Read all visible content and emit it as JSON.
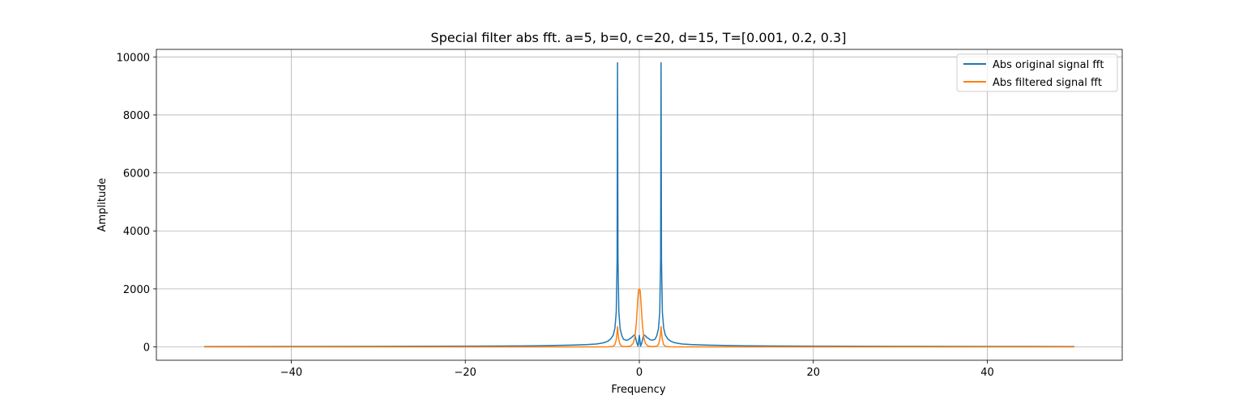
{
  "chart_data": {
    "type": "line",
    "title": "Special filter abs fft. a=5, b=0, c=20, d=15, T=[0.001, 0.2, 0.3]",
    "xlabel": "Frequency",
    "ylabel": "Amplitude",
    "xlim": [
      -55.5,
      55.5
    ],
    "ylim": [
      -460,
      10260
    ],
    "xticks": [
      -40,
      -20,
      0,
      20,
      40
    ],
    "xtick_labels": [
      "−40",
      "−20",
      "0",
      "20",
      "40"
    ],
    "yticks": [
      0,
      2000,
      4000,
      6000,
      8000,
      10000
    ],
    "ytick_labels": [
      "0",
      "2000",
      "4000",
      "6000",
      "8000",
      "10000"
    ],
    "grid": true,
    "legend_position": "top-right",
    "series": [
      {
        "name": "Abs original signal fft",
        "color": "#1f77b4",
        "points": [
          [
            -50,
            12
          ],
          [
            -40,
            14
          ],
          [
            -30,
            18
          ],
          [
            -20,
            25
          ],
          [
            -15,
            32
          ],
          [
            -12,
            40
          ],
          [
            -10,
            48
          ],
          [
            -8,
            60
          ],
          [
            -6,
            80
          ],
          [
            -5,
            98
          ],
          [
            -4.5,
            120
          ],
          [
            -4,
            150
          ],
          [
            -3.6,
            200
          ],
          [
            -3.3,
            270
          ],
          [
            -3.0,
            400
          ],
          [
            -2.8,
            650
          ],
          [
            -2.65,
            1200
          ],
          [
            -2.55,
            3000
          ],
          [
            -2.5,
            9800
          ],
          [
            -2.45,
            3000
          ],
          [
            -2.35,
            1200
          ],
          [
            -2.2,
            620
          ],
          [
            -2.0,
            380
          ],
          [
            -1.8,
            260
          ],
          [
            -1.5,
            230
          ],
          [
            -1.3,
            240
          ],
          [
            -1.1,
            280
          ],
          [
            -0.9,
            320
          ],
          [
            -0.7,
            380
          ],
          [
            -0.5,
            420
          ],
          [
            -0.3,
            150
          ],
          [
            -0.15,
            30
          ],
          [
            0,
            400
          ],
          [
            0.15,
            30
          ],
          [
            0.3,
            150
          ],
          [
            0.5,
            420
          ],
          [
            0.7,
            380
          ],
          [
            0.9,
            320
          ],
          [
            1.1,
            280
          ],
          [
            1.3,
            240
          ],
          [
            1.5,
            230
          ],
          [
            1.8,
            260
          ],
          [
            2.0,
            380
          ],
          [
            2.2,
            620
          ],
          [
            2.35,
            1200
          ],
          [
            2.45,
            3000
          ],
          [
            2.5,
            9800
          ],
          [
            2.55,
            3000
          ],
          [
            2.65,
            1200
          ],
          [
            2.8,
            650
          ],
          [
            3.0,
            400
          ],
          [
            3.3,
            270
          ],
          [
            3.6,
            200
          ],
          [
            4,
            150
          ],
          [
            4.5,
            120
          ],
          [
            5,
            98
          ],
          [
            6,
            80
          ],
          [
            8,
            60
          ],
          [
            10,
            48
          ],
          [
            12,
            40
          ],
          [
            15,
            32
          ],
          [
            20,
            25
          ],
          [
            30,
            18
          ],
          [
            40,
            14
          ],
          [
            50,
            12
          ]
        ]
      },
      {
        "name": "Abs filtered signal fft",
        "color": "#ff7f0e",
        "points": [
          [
            -50,
            0
          ],
          [
            -10,
            0
          ],
          [
            -5,
            0
          ],
          [
            -3.5,
            5
          ],
          [
            -3.0,
            20
          ],
          [
            -2.8,
            80
          ],
          [
            -2.65,
            250
          ],
          [
            -2.55,
            500
          ],
          [
            -2.5,
            700
          ],
          [
            -2.45,
            500
          ],
          [
            -2.35,
            250
          ],
          [
            -2.2,
            80
          ],
          [
            -2.0,
            20
          ],
          [
            -1.5,
            10
          ],
          [
            -1.0,
            30
          ],
          [
            -0.7,
            120
          ],
          [
            -0.5,
            350
          ],
          [
            -0.35,
            800
          ],
          [
            -0.2,
            1500
          ],
          [
            -0.1,
            1950
          ],
          [
            0,
            2000
          ],
          [
            0.1,
            1950
          ],
          [
            0.2,
            1500
          ],
          [
            0.35,
            800
          ],
          [
            0.5,
            350
          ],
          [
            0.7,
            120
          ],
          [
            1.0,
            30
          ],
          [
            1.5,
            10
          ],
          [
            2.0,
            20
          ],
          [
            2.2,
            80
          ],
          [
            2.35,
            250
          ],
          [
            2.45,
            500
          ],
          [
            2.5,
            700
          ],
          [
            2.55,
            500
          ],
          [
            2.65,
            250
          ],
          [
            2.8,
            80
          ],
          [
            3.0,
            20
          ],
          [
            3.5,
            5
          ],
          [
            5,
            0
          ],
          [
            10,
            0
          ],
          [
            50,
            0
          ]
        ]
      }
    ]
  }
}
